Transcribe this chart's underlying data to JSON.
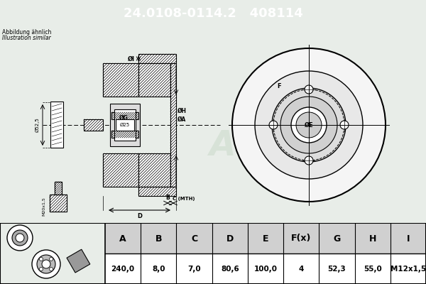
{
  "title_text": "24.0108-0114.2   408114",
  "title_bg": "#0000cc",
  "title_color": "#ffffff",
  "title_fontsize": 13,
  "bg_color": "#e8ede8",
  "note_line1": "Abbildung ähnlich",
  "note_line2": "Illustration similar",
  "table_headers": [
    "A",
    "B",
    "C",
    "D",
    "E",
    "F(x)",
    "G",
    "H",
    "I"
  ],
  "table_values": [
    "240,0",
    "8,0",
    "7,0",
    "80,6",
    "100,0",
    "4",
    "52,3",
    "55,0",
    "M12x1,5"
  ],
  "hatch_color": "#000000",
  "line_color": "#000000",
  "watermark_color": "#c8d8c8"
}
